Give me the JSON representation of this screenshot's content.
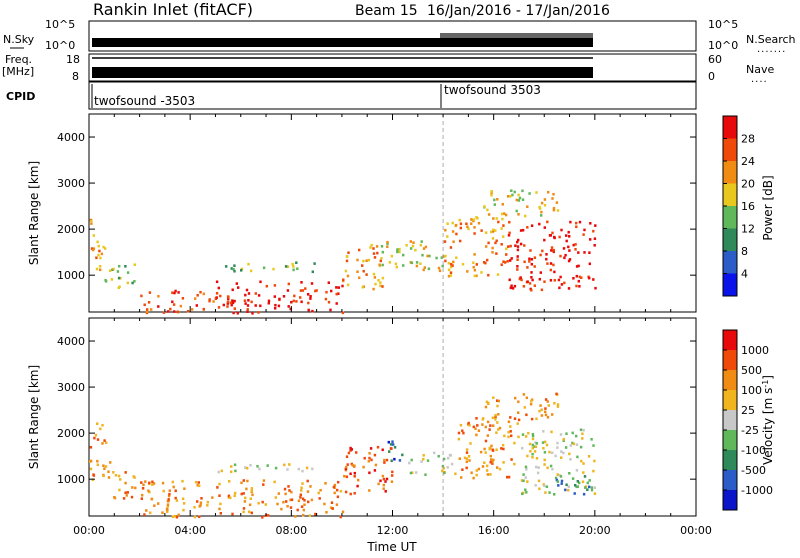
{
  "header": {
    "station": "Rankin Inlet (fitACF)",
    "beam": "Beam 15",
    "dates": "16/Jan/2016 - 17/Jan/2016"
  },
  "summary_panel": {
    "nsky_label": "N.Sky",
    "nsearch_label": "N.Search",
    "freq_label_line1": "Freq.",
    "freq_label_line2": "[MHz]",
    "nave_label": "Nave",
    "cpid_label": "CPID",
    "ticks_left_top": [
      "10^5",
      "10^0"
    ],
    "ticks_right_top": [
      "10^5",
      "10^0"
    ],
    "ticks_left_freq": [
      "18",
      "8"
    ],
    "ticks_right_nave": [
      "60",
      "0"
    ],
    "cpid_segments": [
      {
        "label": "twofsound -3503",
        "start_hour": 0.0
      },
      {
        "label": "twofsound 3503",
        "start_hour": 14.0
      }
    ]
  },
  "chart_data": [
    {
      "type": "heatmap",
      "name": "power",
      "ylabel": "Slant Range [km]",
      "xlabel": "",
      "ylim": [
        200,
        4500
      ],
      "yticks": [
        "1000",
        "2000",
        "3000",
        "4000"
      ],
      "x_ticks": [
        "00:00",
        "04:00",
        "08:00",
        "12:00",
        "16:00",
        "20:00",
        "00:00"
      ],
      "xlim_hours": [
        0,
        24
      ],
      "colorbar": {
        "label": "Power [dB]",
        "ticks": [
          "4",
          "8",
          "12",
          "16",
          "20",
          "24",
          "28"
        ],
        "colors": [
          "#0a14e8",
          "#2a5dc8",
          "#2f8a5a",
          "#5fb85a",
          "#e8c81e",
          "#f08c14",
          "#f04a0a",
          "#e80a0a"
        ]
      },
      "blobs": [
        {
          "t0": 0.0,
          "t1": 0.6,
          "r0": 1050,
          "r1": 2300,
          "level": 5
        },
        {
          "t0": 0.6,
          "t1": 1.8,
          "r0": 700,
          "r1": 1300,
          "level": 3
        },
        {
          "t0": 2.0,
          "t1": 5.0,
          "r0": 200,
          "r1": 700,
          "level": 6
        },
        {
          "t0": 5.0,
          "t1": 10.0,
          "r0": 200,
          "r1": 900,
          "level": 7
        },
        {
          "t0": 5.0,
          "t1": 9.0,
          "r0": 1100,
          "r1": 1300,
          "level": 3
        },
        {
          "t0": 10.0,
          "t1": 11.6,
          "r0": 700,
          "r1": 1700,
          "level": 5
        },
        {
          "t0": 11.5,
          "t1": 14.0,
          "r0": 1100,
          "r1": 1800,
          "level": 4
        },
        {
          "t0": 14.0,
          "t1": 16.5,
          "r0": 1000,
          "r1": 2300,
          "level": 5
        },
        {
          "t0": 16.5,
          "t1": 20.0,
          "r0": 700,
          "r1": 2200,
          "level": 7
        },
        {
          "t0": 15.5,
          "t1": 18.5,
          "r0": 2300,
          "r1": 2900,
          "level": 4
        }
      ]
    },
    {
      "type": "heatmap",
      "name": "velocity",
      "ylabel": "Slant Range [km]",
      "xlabel": "Time UT",
      "ylim": [
        200,
        4500
      ],
      "yticks": [
        "1000",
        "2000",
        "3000",
        "4000"
      ],
      "x_ticks": [
        "00:00",
        "04:00",
        "08:00",
        "12:00",
        "16:00",
        "20:00",
        "00:00"
      ],
      "xlim_hours": [
        0,
        24
      ],
      "colorbar": {
        "label": "Velocity [m s",
        "label_sup": "-1",
        "label_end": "]",
        "ticks": [
          "1000",
          "500",
          "100",
          "25",
          "-25",
          "-100",
          "-500",
          "-1000"
        ],
        "colors": [
          "#e80a0a",
          "#f04a0a",
          "#f08c14",
          "#f0b41e",
          "#c8c8c8",
          "#5fb85a",
          "#2f8a5a",
          "#2a5dc8",
          "#0a14c8"
        ]
      },
      "blobs": [
        {
          "t0": 0.0,
          "t1": 0.8,
          "r0": 1000,
          "r1": 2300,
          "level": 2
        },
        {
          "t0": 0.8,
          "t1": 2.0,
          "r0": 600,
          "r1": 1200,
          "level": 2
        },
        {
          "t0": 2.0,
          "t1": 10.0,
          "r0": 200,
          "r1": 1000,
          "level": 2
        },
        {
          "t0": 5.0,
          "t1": 9.0,
          "r0": 1150,
          "r1": 1350,
          "level": 4
        },
        {
          "t0": 10.0,
          "t1": 12.0,
          "r0": 700,
          "r1": 1800,
          "level": 1
        },
        {
          "t0": 11.8,
          "t1": 12.6,
          "r0": 1400,
          "r1": 1900,
          "level": 7
        },
        {
          "t0": 12.6,
          "t1": 14.5,
          "r0": 1100,
          "r1": 1600,
          "level": 4
        },
        {
          "t0": 14.5,
          "t1": 17.0,
          "r0": 1000,
          "r1": 2400,
          "level": 2
        },
        {
          "t0": 17.0,
          "t1": 20.0,
          "r0": 700,
          "r1": 2100,
          "level": 4
        },
        {
          "t0": 18.0,
          "t1": 20.0,
          "r0": 700,
          "r1": 1100,
          "level": 6
        },
        {
          "t0": 15.5,
          "t1": 18.5,
          "r0": 2300,
          "r1": 2900,
          "level": 2
        }
      ]
    }
  ]
}
